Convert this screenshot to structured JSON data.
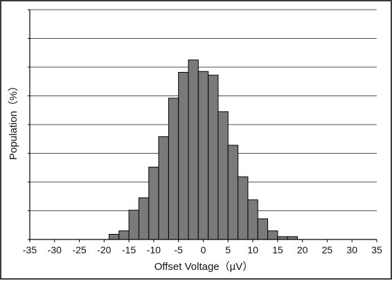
{
  "chart_data": {
    "type": "bar",
    "title": "",
    "xlabel": "Offset Voltage（µV）",
    "ylabel": "Population（%）",
    "xlim": [
      -35,
      35
    ],
    "ylim": [
      0,
      8
    ],
    "xticks": [
      -35,
      -30,
      -25,
      -20,
      -15,
      -10,
      -5,
      0,
      5,
      10,
      15,
      20,
      25,
      30,
      35
    ],
    "ygrid_count": 8,
    "grid": true,
    "bin_width": 2,
    "bins": [
      {
        "x": -18,
        "value": 0.18
      },
      {
        "x": -16,
        "value": 0.3
      },
      {
        "x": -14,
        "value": 1.02
      },
      {
        "x": -12,
        "value": 1.45
      },
      {
        "x": -10,
        "value": 2.52
      },
      {
        "x": -8,
        "value": 3.58
      },
      {
        "x": -6,
        "value": 4.92
      },
      {
        "x": -4,
        "value": 5.82
      },
      {
        "x": -2,
        "value": 6.25
      },
      {
        "x": 0,
        "value": 5.85
      },
      {
        "x": 2,
        "value": 5.72
      },
      {
        "x": 4,
        "value": 4.45
      },
      {
        "x": 6,
        "value": 3.28
      },
      {
        "x": 8,
        "value": 2.18
      },
      {
        "x": 10,
        "value": 1.38
      },
      {
        "x": 12,
        "value": 0.72
      },
      {
        "x": 14,
        "value": 0.3
      },
      {
        "x": 16,
        "value": 0.1
      },
      {
        "x": 18,
        "value": 0.1
      }
    ],
    "colors": {
      "bar_fill": "#7a7a7a",
      "bar_stroke": "#000000",
      "grid": "#4d4d4d",
      "axis": "#000000"
    }
  }
}
